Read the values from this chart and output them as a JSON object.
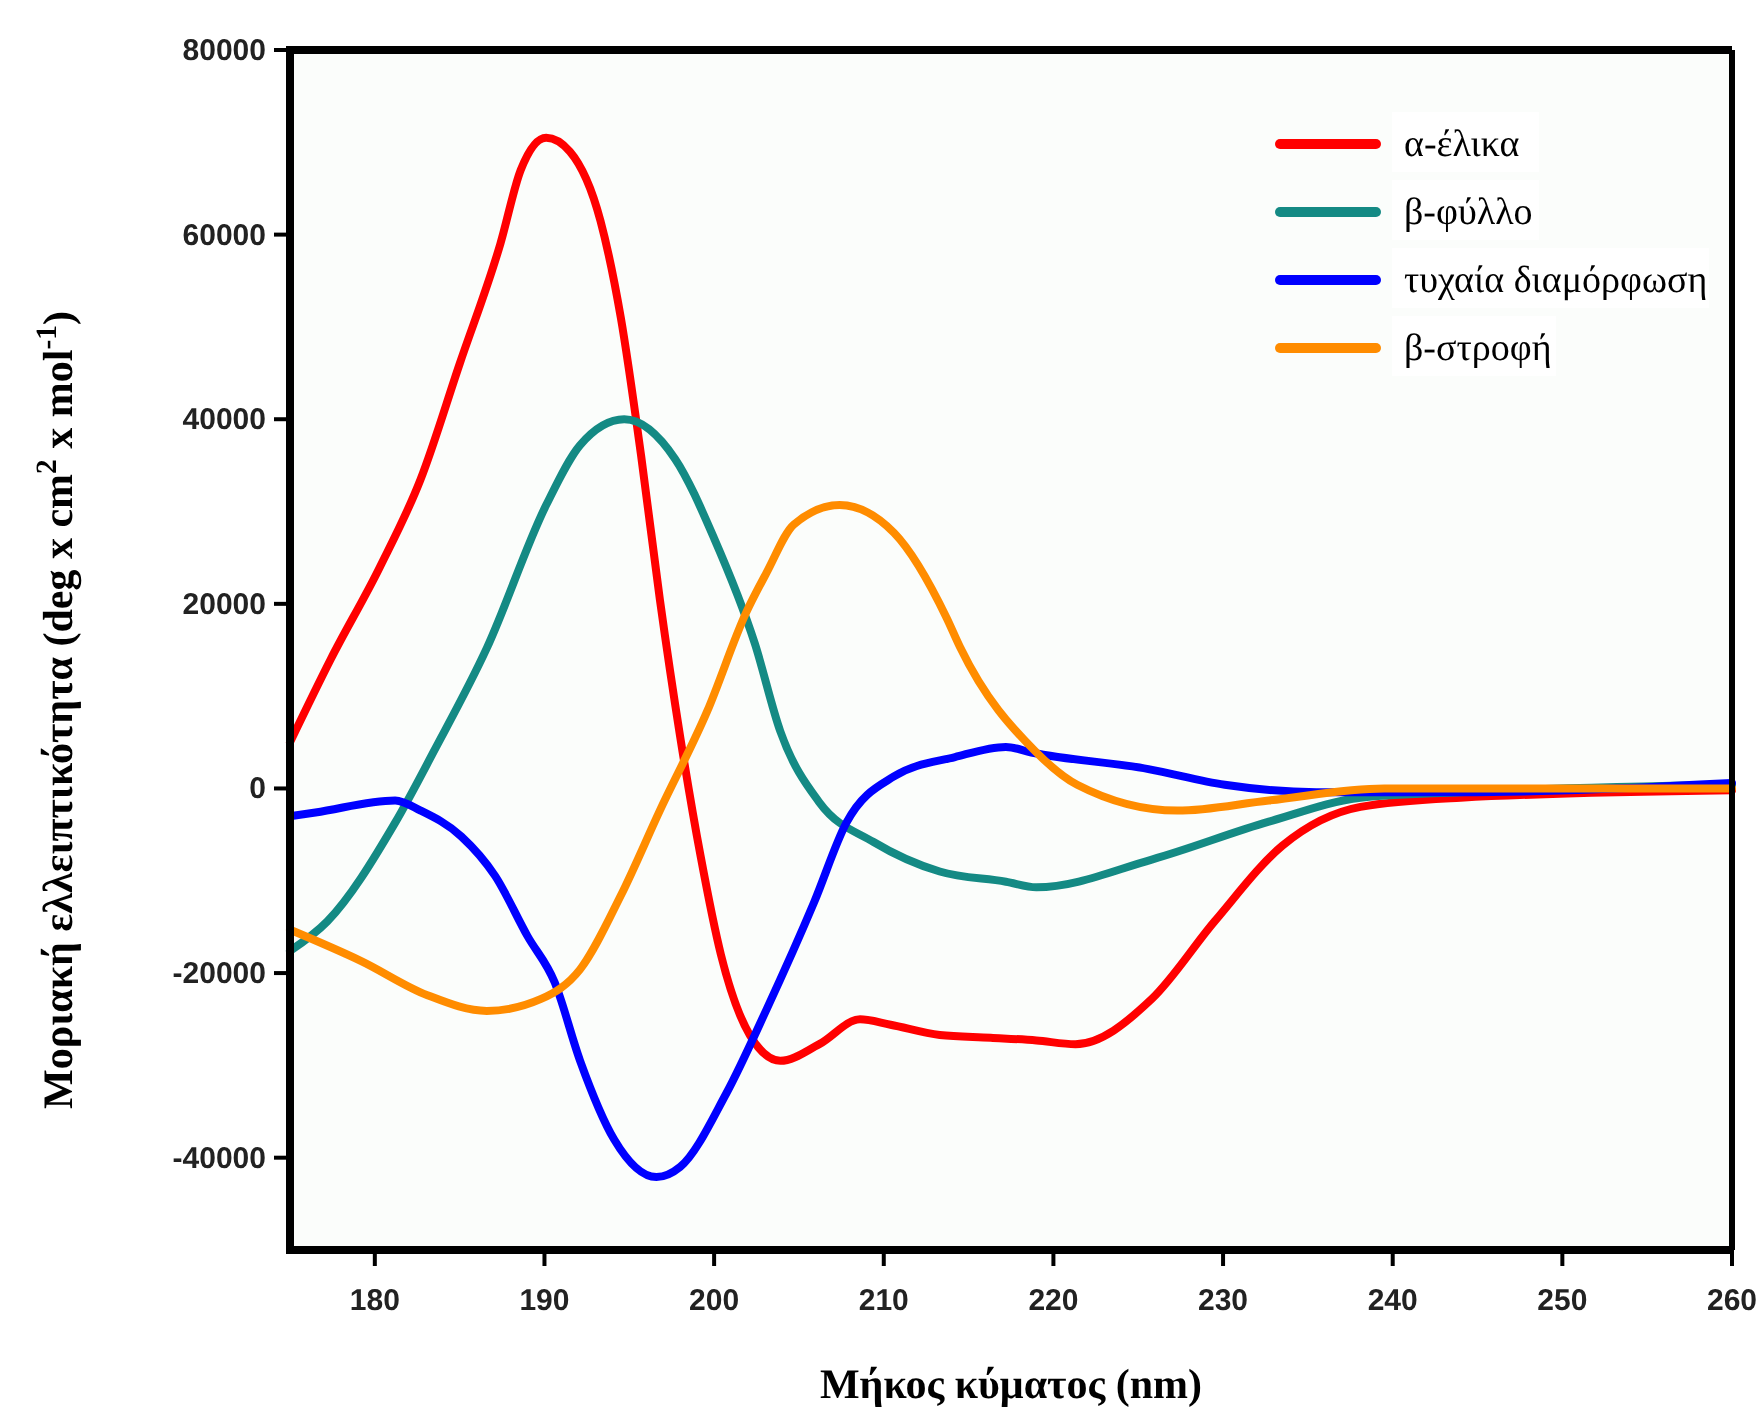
{
  "chart_data": {
    "type": "line",
    "xlabel": "Μήκος κύματος (nm)",
    "ylabel": "Μοριακή ελλειπτικότητα (deg x cm$^{2}$ x mol$^{-1}$)",
    "xlim": [
      175,
      260
    ],
    "xticks": [
      180,
      190,
      200,
      210,
      220,
      230,
      240,
      250,
      260
    ],
    "ylim": [
      -50000,
      80000
    ],
    "yticks": [
      -40000,
      -20000,
      0,
      20000,
      40000,
      60000,
      80000
    ],
    "grid": false,
    "legend": "top right",
    "marker": "none",
    "line_style": "solid",
    "series": [
      {
        "name": "α-έλικα",
        "color": "#ff0000",
        "x": [
          175,
          177.4,
          180.3,
          182.7,
          185,
          187.4,
          188.6,
          190.1,
          191.5,
          193.3,
          194.5,
          195.7,
          196.8,
          198,
          199.2,
          200.4,
          202.1,
          203.9,
          206.2,
          208.6,
          210.4,
          213.3,
          216.3,
          219,
          221.3,
          225.8,
          229.5,
          233.5,
          238.1,
          244,
          260
        ],
        "values": [
          5000,
          14000,
          24000,
          33500,
          46000,
          59000,
          67000,
          70500,
          69000,
          61500,
          51000,
          36000,
          20500,
          5600,
          -7300,
          -18000,
          -26700,
          -29500,
          -27700,
          -25000,
          -25600,
          -26700,
          -27000,
          -27300,
          -27700,
          -22800,
          -14400,
          -6200,
          -2000,
          -1000,
          -200
        ]
      },
      {
        "name": "β-φύλλο",
        "color": "#148a84",
        "x": [
          175,
          177.2,
          181.2,
          183.5,
          186.6,
          190.1,
          192.1,
          194.7,
          197.7,
          200,
          202.4,
          203.9,
          206.2,
          209.4,
          213.3,
          217.2,
          219,
          225.8,
          232.7,
          238.1,
          244,
          260
        ],
        "values": [
          -17600,
          -14400,
          -3700,
          4100,
          15200,
          30700,
          37200,
          40000,
          35700,
          27100,
          15700,
          6200,
          -1500,
          -5800,
          -9000,
          -10100,
          -10700,
          -7700,
          -3600,
          -1000,
          -400,
          400
        ]
      },
      {
        "name": "τυχαία διαμόρφωση",
        "color": "#0000ff",
        "x": [
          175,
          176.5,
          181.2,
          182.7,
          185.1,
          187.1,
          189,
          190.6,
          192.1,
          194.1,
          196.6,
          198,
          200.7,
          203.1,
          205.9,
          207.8,
          210.6,
          214.2,
          217.2,
          218.7,
          225.6,
          230.1,
          235.5,
          244,
          260
        ],
        "values": [
          -3000,
          -2600,
          -1300,
          -2400,
          -5200,
          -9500,
          -16000,
          -21000,
          -29500,
          -38000,
          -42100,
          -41000,
          -33100,
          -23900,
          -12300,
          -3700,
          1300,
          3400,
          4500,
          3900,
          2100,
          400,
          -400,
          -400,
          600
        ]
      },
      {
        "name": "β-στροφή",
        "color": "#ff8c00",
        "x": [
          175,
          179.2,
          183.1,
          186.6,
          189.8,
          192.1,
          194.5,
          196.8,
          199.6,
          201.9,
          203.1,
          204.7,
          207.4,
          210.6,
          213.7,
          214.5,
          219,
          221.4,
          227.3,
          232.7,
          239.5,
          260
        ],
        "values": [
          -15300,
          -18700,
          -22400,
          -24100,
          -22800,
          -19600,
          -11600,
          -2400,
          8400,
          19100,
          23400,
          28600,
          30700,
          27700,
          18500,
          15300,
          3900,
          400,
          -2400,
          -1300,
          0,
          0
        ]
      }
    ]
  }
}
